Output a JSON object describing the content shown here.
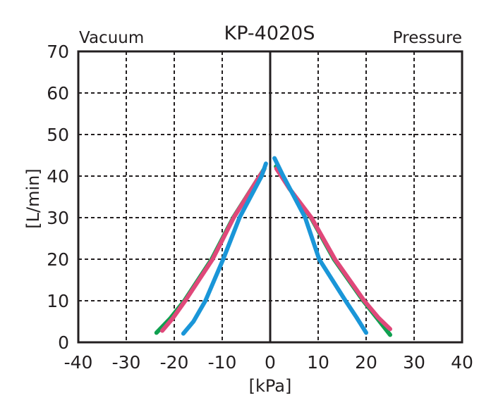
{
  "chart_data": {
    "type": "line",
    "title": "KP-4020S",
    "left_label": "Vacuum",
    "right_label": "Pressure",
    "xlabel": "[kPa]",
    "ylabel": "[L/min]",
    "xlim": [
      -40,
      40
    ],
    "ylim": [
      0,
      70
    ],
    "xticks": [
      -40,
      -30,
      -20,
      -10,
      0,
      10,
      20,
      30,
      40
    ],
    "yticks": [
      0,
      10,
      20,
      30,
      40,
      50,
      60,
      70
    ],
    "xtick_labels": [
      "-40",
      "-30",
      "-20",
      "-10",
      "0",
      "10",
      "20",
      "30",
      "40"
    ],
    "ytick_labels": [
      "0",
      "10",
      "20",
      "30",
      "40",
      "50",
      "60",
      "70"
    ],
    "grid": true,
    "series": [
      {
        "name": "green",
        "color": "#10a050",
        "segments": [
          [
            [
              -23.7,
              2.3
            ],
            [
              -20.8,
              5.8
            ],
            [
              -17.9,
              10
            ],
            [
              -12.2,
              20
            ],
            [
              -7.7,
              30
            ],
            [
              -2.2,
              40
            ],
            [
              -1.2,
              41.8
            ]
          ],
          [
            [
              1.2,
              42.3
            ],
            [
              4,
              37
            ],
            [
              8.5,
              30
            ],
            [
              13.3,
              20
            ],
            [
              19.4,
              10
            ],
            [
              22.5,
              5.5
            ],
            [
              25,
              1.8
            ]
          ]
        ]
      },
      {
        "name": "pink",
        "color": "#e0487a",
        "segments": [
          [
            [
              -22.5,
              2.8
            ],
            [
              -20.3,
              5.8
            ],
            [
              -17.7,
              10
            ],
            [
              -12,
              20
            ],
            [
              -7.6,
              30
            ],
            [
              -2.2,
              40
            ],
            [
              -1.3,
              41.5
            ]
          ],
          [
            [
              1.3,
              41.8
            ],
            [
              4,
              37
            ],
            [
              8.6,
              30
            ],
            [
              13.5,
              20
            ],
            [
              19.6,
              10
            ],
            [
              22.5,
              6
            ],
            [
              25,
              3.2
            ]
          ]
        ]
      },
      {
        "name": "blue",
        "color": "#1a96d8",
        "segments": [
          [
            [
              -18.1,
              2.1
            ],
            [
              -16,
              5
            ],
            [
              -13.5,
              10
            ],
            [
              -9.8,
              20
            ],
            [
              -6.4,
              30
            ],
            [
              -1.8,
              40
            ],
            [
              -0.9,
              43
            ]
          ],
          [
            [
              0.9,
              44.3
            ],
            [
              2.5,
              40.5
            ],
            [
              7.3,
              30
            ],
            [
              10.2,
              20
            ],
            [
              15.7,
              10
            ],
            [
              18,
              6
            ],
            [
              20,
              2.3
            ]
          ]
        ]
      }
    ]
  }
}
